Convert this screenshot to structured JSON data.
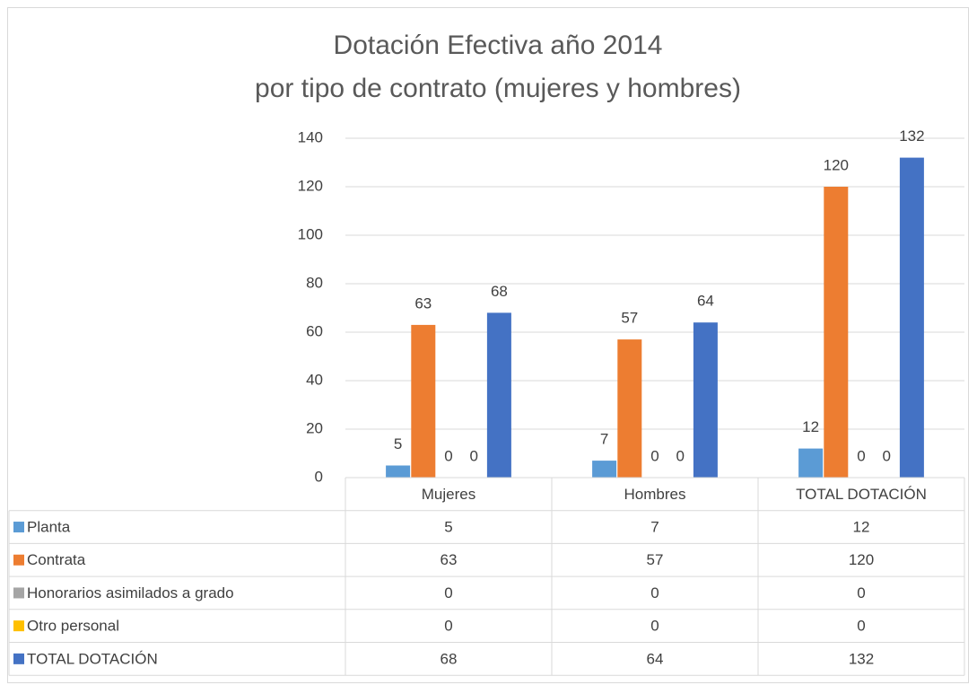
{
  "chart_data": {
    "type": "bar",
    "title": [
      "Dotación Efectiva año 2014",
      "por tipo de contrato (mujeres y hombres)"
    ],
    "categories": [
      "Mujeres",
      "Hombres",
      "TOTAL DOTACIÓN"
    ],
    "series": [
      {
        "name": "Planta",
        "color": "#5b9bd5",
        "values": [
          5,
          7,
          12
        ]
      },
      {
        "name": "Contrata",
        "color": "#ed7d31",
        "values": [
          63,
          57,
          120
        ]
      },
      {
        "name": "Honorarios asimilados a grado",
        "color": "#a5a5a5",
        "values": [
          0,
          0,
          0
        ]
      },
      {
        "name": "Otro personal",
        "color": "#ffc000",
        "values": [
          0,
          0,
          0
        ]
      },
      {
        "name": "TOTAL DOTACIÓN",
        "color": "#4472c4",
        "values": [
          68,
          64,
          132
        ]
      }
    ],
    "ylim": [
      0,
      140
    ],
    "yticks": [
      0,
      20,
      40,
      60,
      80,
      100,
      120,
      140
    ],
    "grid": true,
    "data_table": true
  }
}
